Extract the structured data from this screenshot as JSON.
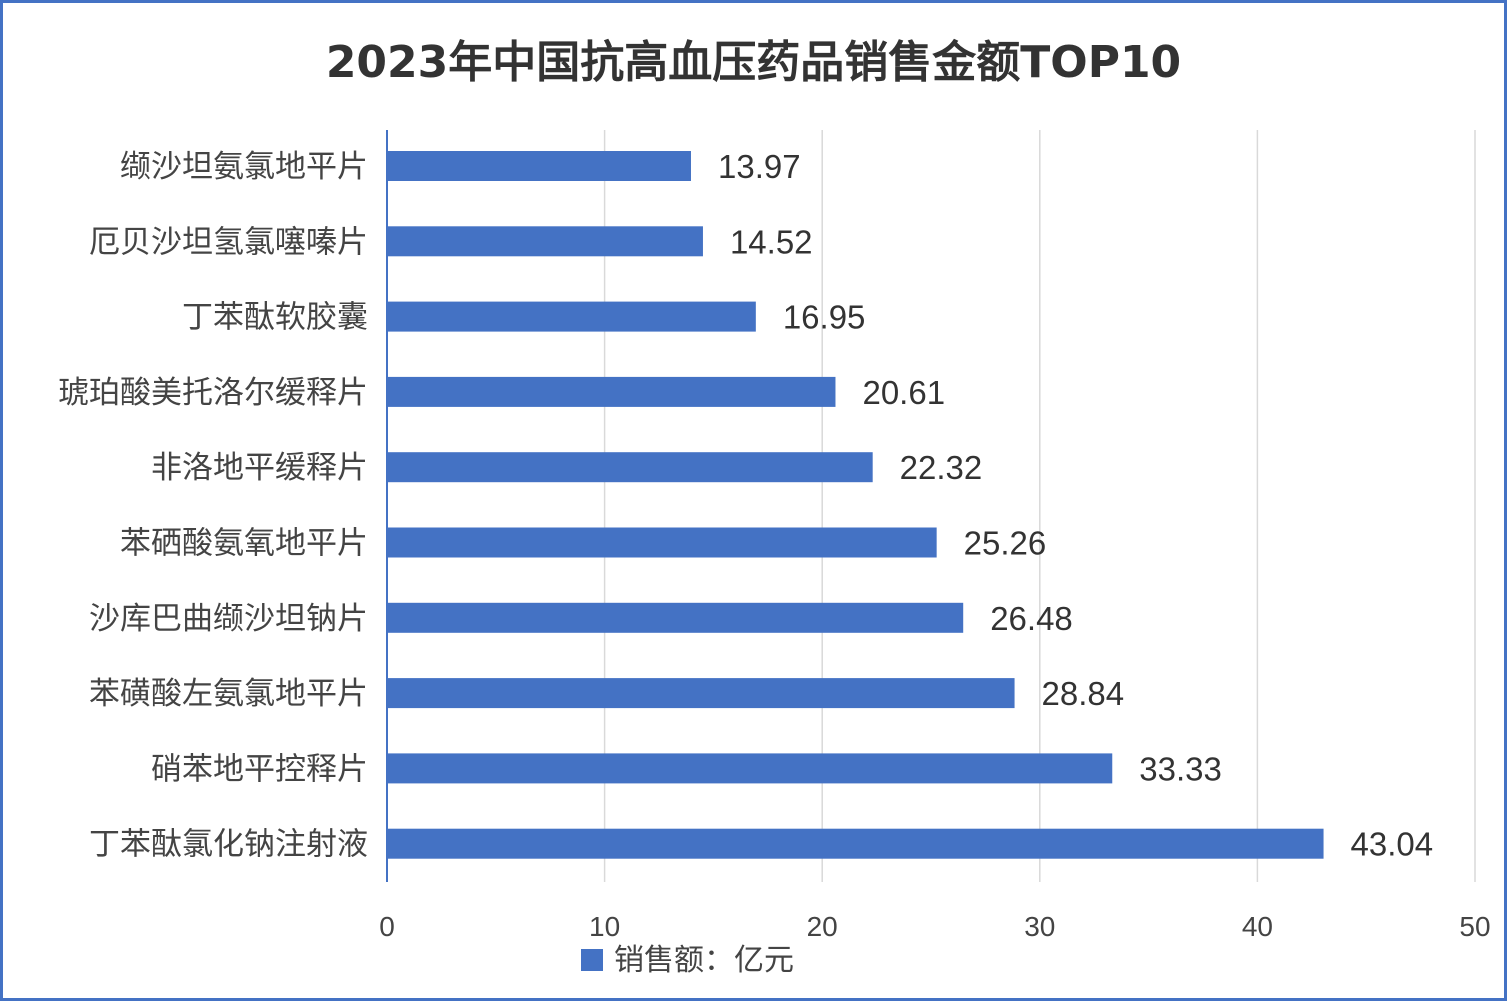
{
  "chart_data": {
    "type": "bar",
    "orientation": "horizontal",
    "title": "2023年中国抗高血压药品销售金额TOP10",
    "categories": [
      "缬沙坦氨氯地平片",
      "厄贝沙坦氢氯噻嗪片",
      "丁苯酞软胶囊",
      "琥珀酸美托洛尔缓释片",
      "非洛地平缓释片",
      "苯硒酸氨氧地平片",
      "沙库巴曲缬沙坦钠片",
      "苯磺酸左氨氯地平片",
      "硝苯地平控释片",
      "丁苯酞氯化钠注射液"
    ],
    "series": [
      {
        "name": "销售额：亿元",
        "values": [
          13.97,
          14.52,
          16.95,
          20.61,
          22.32,
          25.26,
          26.48,
          28.84,
          33.33,
          43.04
        ],
        "labels": [
          "13.97",
          "14.52",
          "16.95",
          "20.61",
          "22.32",
          "25.26",
          "26.48",
          "28.84",
          "33.33",
          "43.04"
        ]
      }
    ],
    "xlim": [
      0,
      50
    ],
    "xticks": [
      "0",
      "10",
      "20",
      "30",
      "40",
      "50"
    ],
    "grid": true,
    "legend_position": "bottom",
    "bar_color": "#4472c4",
    "border_color": "#4472c4"
  }
}
